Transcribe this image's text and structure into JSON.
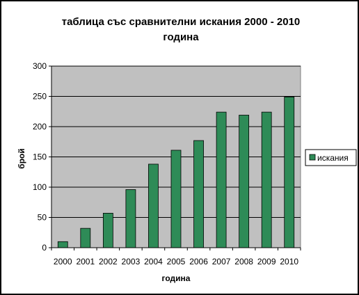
{
  "chart_data": {
    "type": "bar",
    "title_line1": "таблица със сравнителни искания 2000 - 2010",
    "title_line2": "година",
    "xlabel": "година",
    "ylabel": "брой",
    "categories": [
      "2000",
      "2001",
      "2002",
      "2003",
      "2004",
      "2005",
      "2006",
      "2007",
      "2008",
      "2009",
      "2010"
    ],
    "series": [
      {
        "name": "искания",
        "values": [
          10,
          32,
          57,
          96,
          138,
          161,
          177,
          224,
          219,
          224,
          249
        ]
      }
    ],
    "ylim": [
      0,
      300
    ],
    "yticks": [
      0,
      50,
      100,
      150,
      200,
      250,
      300
    ],
    "grid": true,
    "legend_position": "right",
    "colors": {
      "bar": "#2e8b57",
      "plot_background": "#c0c0c0",
      "gridline": "#000000"
    }
  }
}
